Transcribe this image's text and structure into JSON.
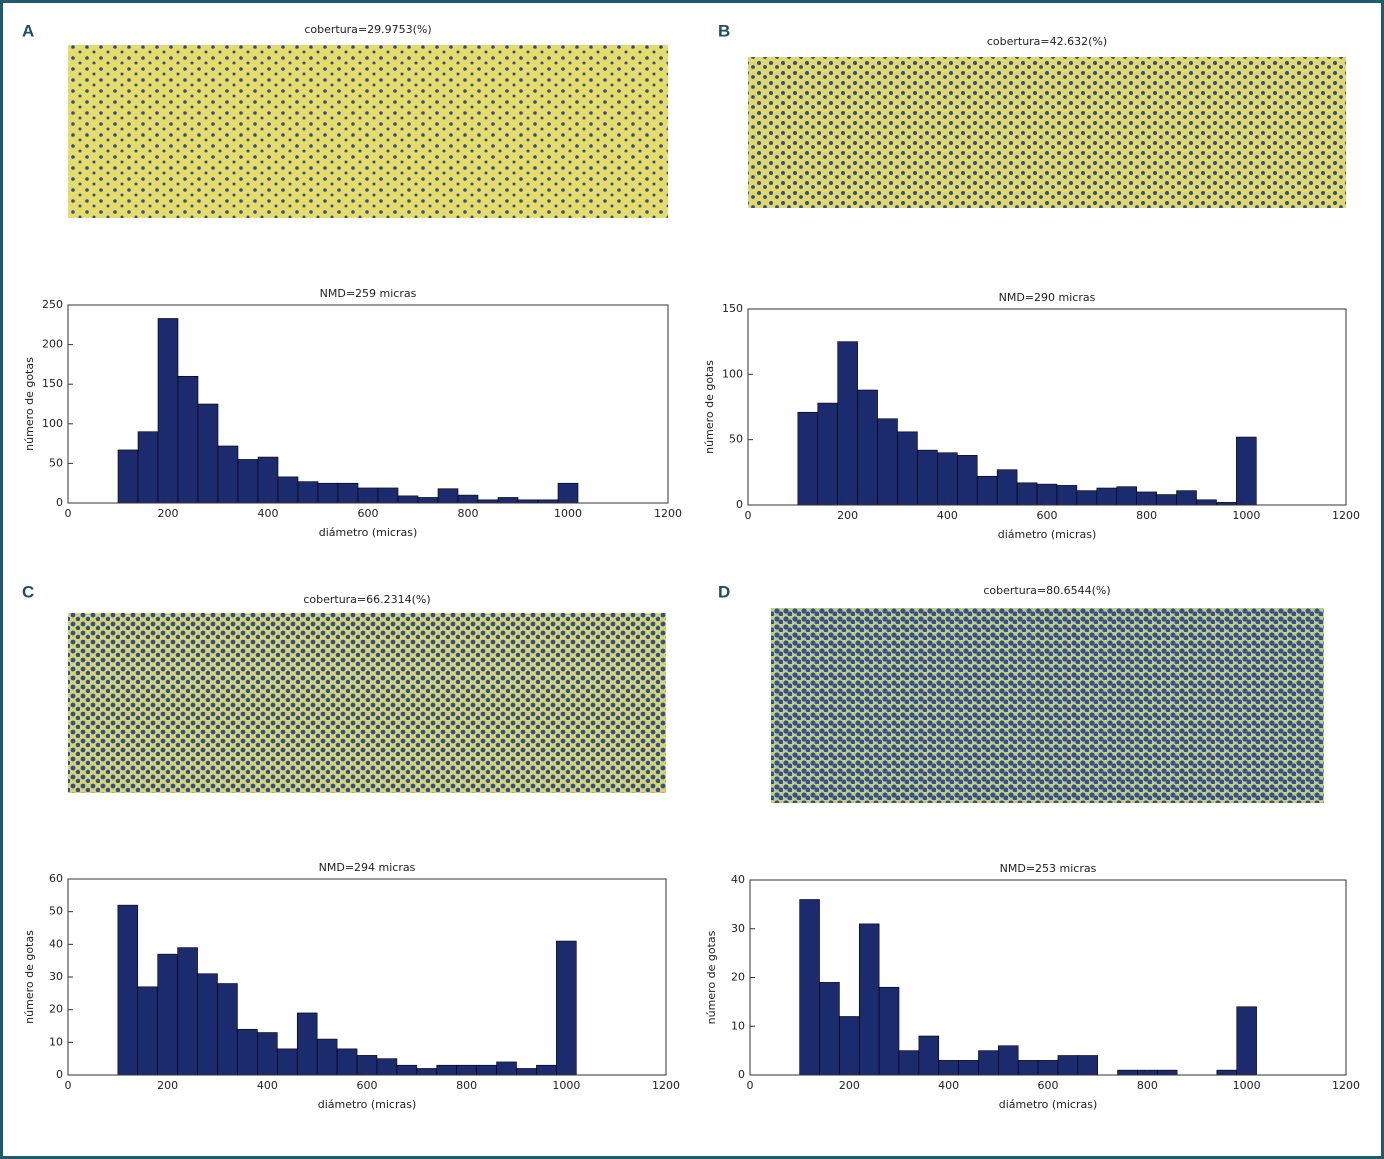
{
  "chart_data": [
    {
      "type": "histogram",
      "panel": "A",
      "image_title": "cobertura=29.9753(%)",
      "title": "NMD=259 micras",
      "xlabel": "diámetro (micras)",
      "ylabel": "número de gotas",
      "color": "#1c2a6e",
      "bins": [
        100,
        140,
        180,
        220,
        260,
        300,
        340,
        380,
        420,
        460,
        500,
        540,
        580,
        620,
        660,
        700,
        740,
        780,
        820,
        860,
        900,
        940,
        980,
        1020
      ],
      "values": [
        67,
        90,
        233,
        160,
        125,
        72,
        55,
        58,
        33,
        27,
        25,
        25,
        19,
        19,
        9,
        7,
        18,
        10,
        4,
        7,
        4,
        4,
        25
      ],
      "xlim": [
        0,
        1200
      ],
      "xticks": [
        0,
        200,
        400,
        600,
        800,
        1000,
        1200
      ],
      "ylim": [
        0,
        250
      ],
      "yticks": [
        0,
        50,
        100,
        150,
        200,
        250
      ]
    },
    {
      "type": "histogram",
      "panel": "B",
      "image_title": "cobertura=42.632(%)",
      "title": "NMD=290 micras",
      "xlabel": "diámetro (micras)",
      "ylabel": "número de gotas",
      "color": "#1c2a6e",
      "bins": [
        100,
        140,
        180,
        220,
        260,
        300,
        340,
        380,
        420,
        460,
        500,
        540,
        580,
        620,
        660,
        700,
        740,
        780,
        820,
        860,
        900,
        940,
        980,
        1020
      ],
      "values": [
        71,
        78,
        125,
        88,
        66,
        56,
        42,
        40,
        38,
        22,
        27,
        17,
        16,
        15,
        11,
        13,
        14,
        10,
        8,
        11,
        4,
        2,
        52
      ],
      "xlim": [
        0,
        1200
      ],
      "xticks": [
        0,
        200,
        400,
        600,
        800,
        1000,
        1200
      ],
      "ylim": [
        0,
        150
      ],
      "yticks": [
        0,
        50,
        100,
        150
      ]
    },
    {
      "type": "histogram",
      "panel": "C",
      "image_title": "cobertura=66.2314(%)",
      "title": "NMD=294 micras",
      "xlabel": "diámetro (micras)",
      "ylabel": "número de gotas",
      "color": "#1c2a6e",
      "bins": [
        100,
        140,
        180,
        220,
        260,
        300,
        340,
        380,
        420,
        460,
        500,
        540,
        580,
        620,
        660,
        700,
        740,
        780,
        820,
        860,
        900,
        940,
        980,
        1020
      ],
      "values": [
        52,
        27,
        37,
        39,
        31,
        28,
        14,
        13,
        8,
        19,
        11,
        8,
        6,
        5,
        3,
        2,
        3,
        3,
        3,
        4,
        2,
        3,
        41
      ],
      "xlim": [
        0,
        1200
      ],
      "xticks": [
        0,
        200,
        400,
        600,
        800,
        1000,
        1200
      ],
      "ylim": [
        0,
        60
      ],
      "yticks": [
        0,
        10,
        20,
        30,
        40,
        50,
        60
      ]
    },
    {
      "type": "histogram",
      "panel": "D",
      "image_title": "cobertura=80.6544(%)",
      "title": "NMD=253 micras",
      "xlabel": "diámetro (micras)",
      "ylabel": "número de gotas",
      "color": "#1c2a6e",
      "bins": [
        100,
        140,
        180,
        220,
        260,
        300,
        340,
        380,
        420,
        460,
        500,
        540,
        580,
        620,
        660,
        700,
        740,
        780,
        820,
        860,
        900,
        940,
        980,
        1020
      ],
      "values": [
        36,
        19,
        12,
        31,
        18,
        5,
        8,
        3,
        3,
        5,
        6,
        3,
        3,
        4,
        4,
        0,
        1,
        1,
        1,
        0,
        0,
        1,
        14
      ],
      "xlim": [
        0,
        1200
      ],
      "xticks": [
        0,
        200,
        400,
        600,
        800,
        1000,
        1200
      ],
      "ylim": [
        0,
        40
      ],
      "yticks": [
        0,
        10,
        20,
        30,
        40
      ]
    }
  ]
}
